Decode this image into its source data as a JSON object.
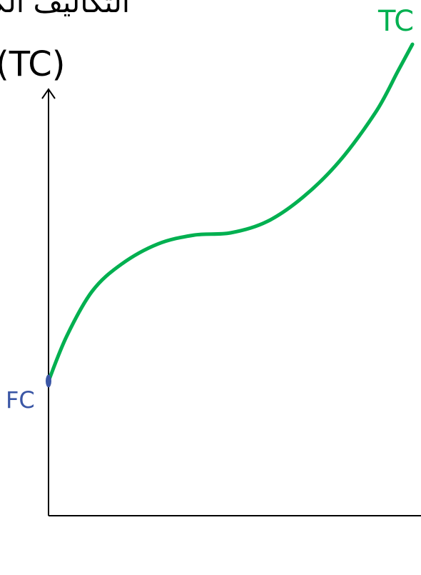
{
  "chart_data": {
    "type": "line",
    "title": "التكاليف الكلية",
    "xlabel": "",
    "ylabel": "(TC)",
    "grid": false,
    "series": [
      {
        "name": "TC",
        "color": "#00b050",
        "x": [
          0,
          0.05,
          0.12,
          0.2,
          0.3,
          0.4,
          0.5,
          0.6,
          0.7,
          0.8,
          0.9,
          0.96,
          1.0
        ],
        "y": [
          0.3,
          0.4,
          0.5,
          0.56,
          0.605,
          0.625,
          0.63,
          0.655,
          0.71,
          0.79,
          0.9,
          0.99,
          1.05
        ]
      }
    ],
    "annotations": [
      {
        "text": "FC",
        "x": 0,
        "y": 0.3,
        "color": "#3a56a5"
      }
    ],
    "xlim": [
      0,
      1.0
    ],
    "ylim": [
      0,
      1.05
    ]
  },
  "colors": {
    "axis": "#000000",
    "tc_line": "#00b050",
    "fc_marker": "#3a56a5"
  }
}
